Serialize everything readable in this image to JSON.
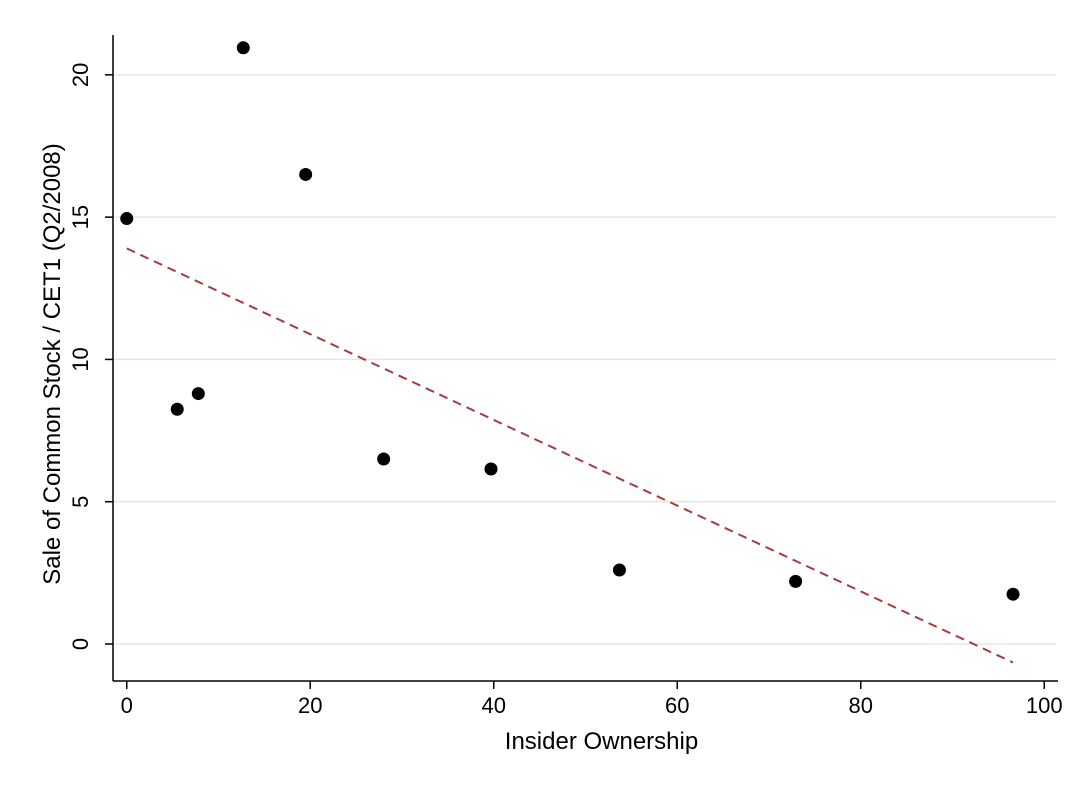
{
  "chart_data": {
    "type": "scatter",
    "title": "",
    "xlabel": "Insider Ownership",
    "ylabel": "Sale of Common Stock / CET1 (Q2/2008)",
    "xlim": [
      -1.5,
      101.5
    ],
    "ylim": [
      -1.3,
      21.4
    ],
    "xticks": [
      0,
      20,
      40,
      60,
      80,
      100
    ],
    "yticks": [
      0,
      5,
      10,
      15,
      20
    ],
    "grid": "horizontal",
    "legend": "none",
    "colors": {
      "points": "#000000",
      "fit_line": "#a83b3b",
      "grid": "#e6e6e6",
      "axis": "#000000"
    },
    "series": [
      {
        "type": "scatter",
        "x": [
          0,
          5.5,
          7.8,
          12.7,
          19.5,
          28.0,
          39.7,
          53.7,
          72.9,
          96.6
        ],
        "y": [
          14.95,
          8.25,
          8.8,
          20.95,
          16.5,
          6.5,
          6.15,
          2.6,
          2.2,
          1.75
        ]
      },
      {
        "type": "fit-line",
        "style": "dashed",
        "x": [
          0,
          96.6
        ],
        "y": [
          13.9,
          -0.65
        ]
      }
    ]
  }
}
